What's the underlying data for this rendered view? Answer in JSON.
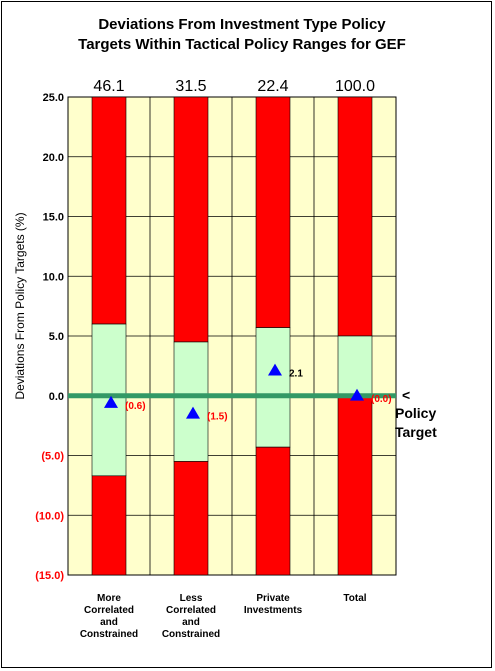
{
  "chart_data": {
    "type": "bar",
    "title_lines": [
      "Deviations From Investment Type Policy",
      "Targets Within Tactical Policy Ranges for GEF"
    ],
    "ylabel": "Deviations From Policy Targets (%)",
    "ylim": [
      -15,
      25
    ],
    "yticks": [
      {
        "value": 25,
        "label": "25.0"
      },
      {
        "value": 20,
        "label": "20.0"
      },
      {
        "value": 15,
        "label": "15.0"
      },
      {
        "value": 10,
        "label": "10.0"
      },
      {
        "value": 5,
        "label": "5.0"
      },
      {
        "value": 0,
        "label": "0.0"
      },
      {
        "value": -5,
        "label": "(5.0)"
      },
      {
        "value": -10,
        "label": "(10.0)"
      },
      {
        "value": -15,
        "label": "(15.0)"
      }
    ],
    "categories": [
      {
        "lines": [
          "More",
          "Correlated",
          "and",
          "Constrained"
        ],
        "top_value": "46.1",
        "range_low": -6.7,
        "range_high": 6.0,
        "deviation": -0.6,
        "deviation_label": "(0.6)"
      },
      {
        "lines": [
          "Less",
          "Correlated",
          "and",
          "Constrained"
        ],
        "top_value": "31.5",
        "range_low": -5.5,
        "range_high": 4.5,
        "deviation": -1.5,
        "deviation_label": "(1.5)"
      },
      {
        "lines": [
          "Private",
          "Investments"
        ],
        "top_value": "22.4",
        "range_low": -4.3,
        "range_high": 5.7,
        "deviation": 2.1,
        "deviation_label": "2.1"
      },
      {
        "lines": [
          "Total"
        ],
        "top_value": "100.0",
        "range_low": 0.0,
        "range_high": 5.0,
        "deviation": 0.0,
        "deviation_label": "(0.0)"
      }
    ],
    "annotation_lines": [
      "<",
      "Policy",
      "Target"
    ],
    "colors": {
      "plot_bg": "#ffffcc",
      "out_of_range": "#ff0000",
      "in_range": "#ccffcc",
      "policy_line": "#339966",
      "marker": "#0000ff",
      "negative_text": "#ff0000",
      "positive_text": "#000000"
    },
    "grid": true
  }
}
